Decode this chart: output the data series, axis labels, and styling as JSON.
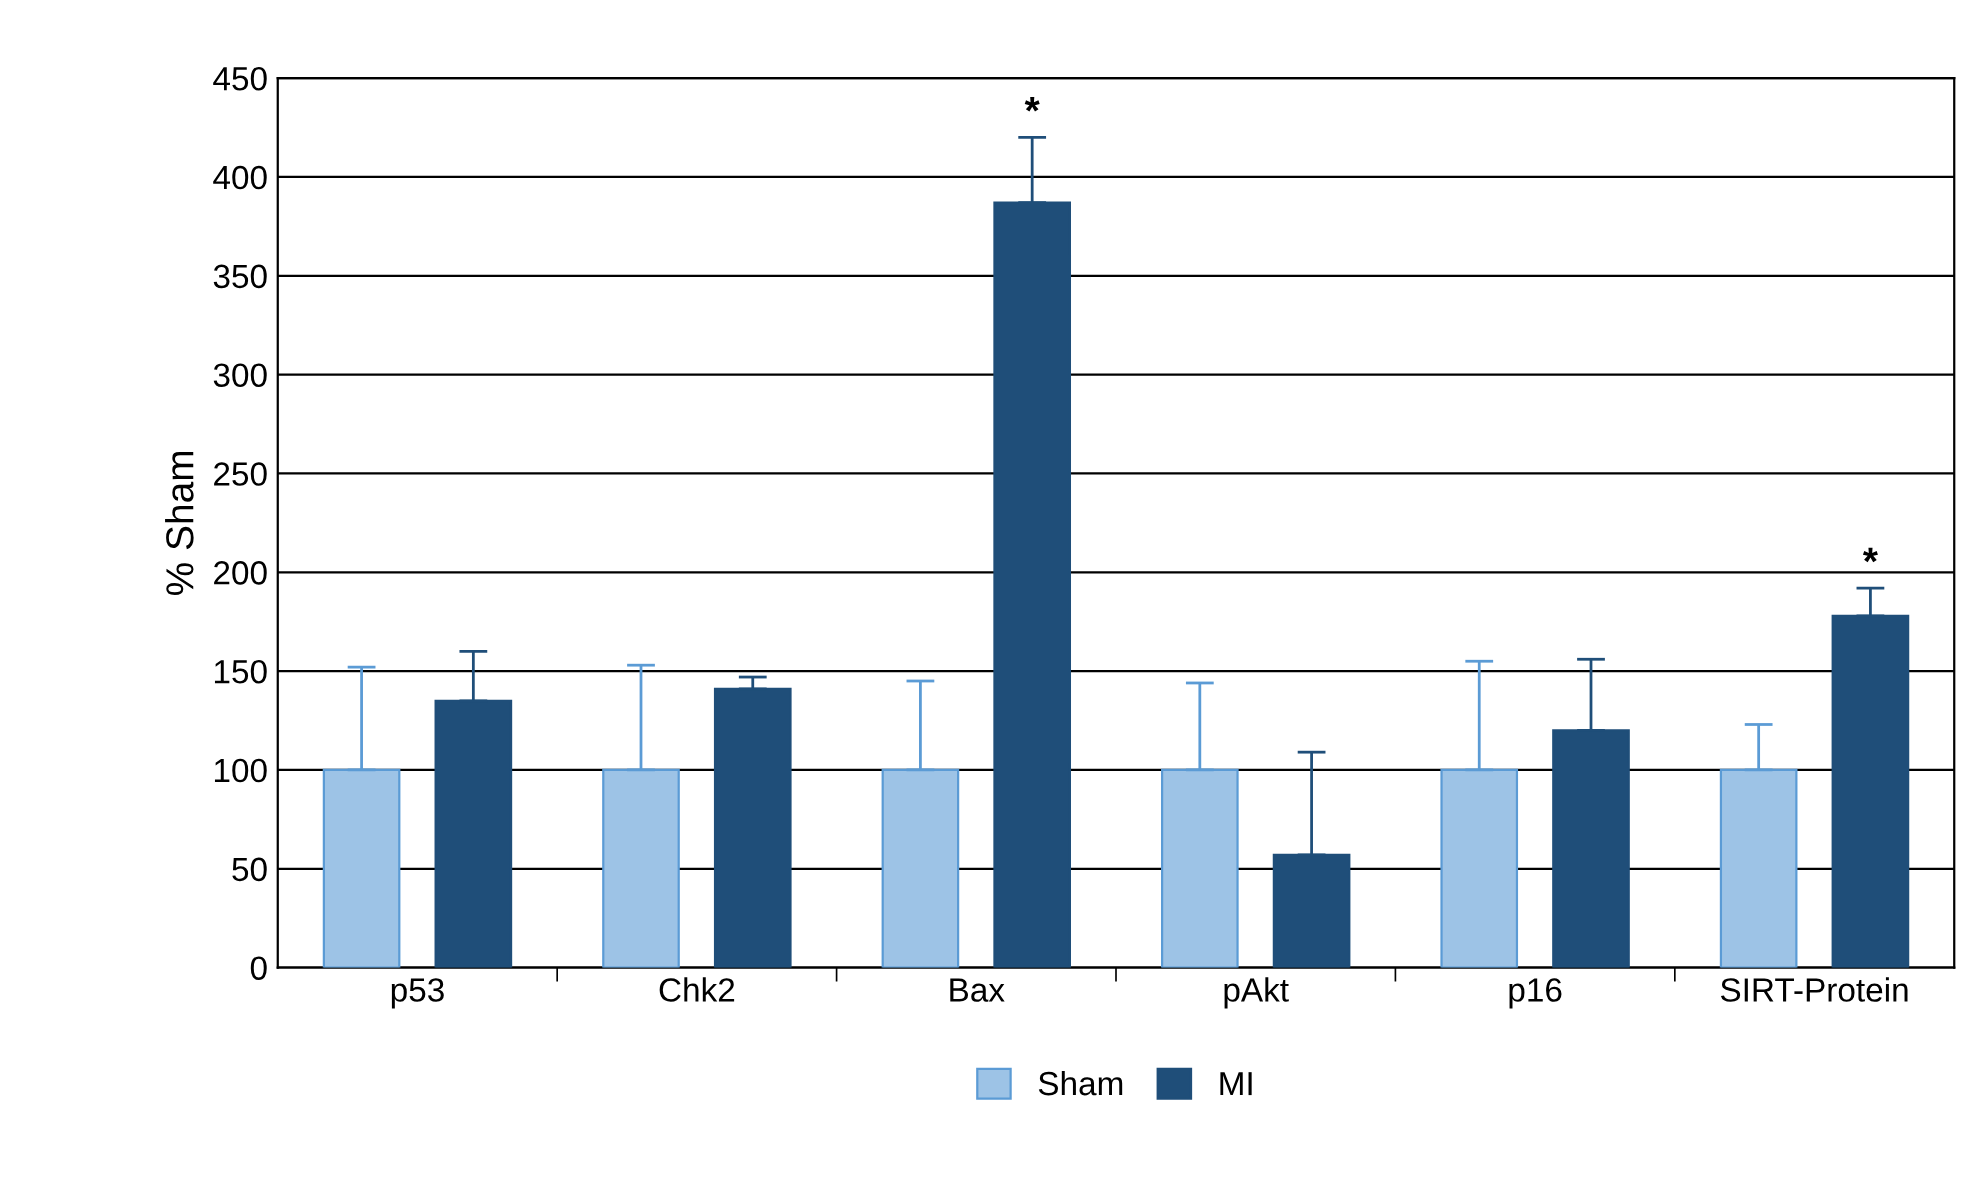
{
  "chart_data": {
    "type": "bar",
    "ylabel": "% Sham",
    "categories": [
      "p53",
      "Chk2",
      "Bax",
      "pAkt",
      "p16",
      "SIRT-Protein"
    ],
    "series": [
      {
        "name": "Sham",
        "color": "#9dc3e6",
        "values": [
          100,
          100,
          100,
          100,
          100,
          100
        ],
        "errors": [
          [
            100,
            152
          ],
          [
            100,
            153
          ],
          [
            100,
            145
          ],
          [
            100,
            144
          ],
          [
            100,
            155
          ],
          [
            100,
            123
          ]
        ]
      },
      {
        "name": "MI",
        "color": "#1f4e79",
        "values": [
          135,
          141,
          387,
          57,
          120,
          178
        ],
        "value_labels": [
          null,
          null,
          "*",
          null,
          null,
          "*"
        ],
        "errors": [
          [
            135,
            160
          ],
          [
            141,
            147
          ],
          [
            387,
            420
          ],
          [
            57,
            109
          ],
          [
            120,
            156
          ],
          [
            178,
            192
          ]
        ]
      }
    ],
    "ylim": [
      0,
      450
    ],
    "yticks": [
      0,
      50,
      100,
      150,
      200,
      250,
      300,
      350,
      400,
      450
    ],
    "grid": "y",
    "legend": "bottom"
  }
}
